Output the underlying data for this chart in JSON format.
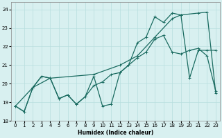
{
  "xlabel": "Humidex (Indice chaleur)",
  "background_color": "#d8f0f0",
  "grid_color": "#b8dede",
  "line_color": "#1a6b60",
  "xlim": [
    -0.5,
    23.5
  ],
  "ylim": [
    18,
    24.4
  ],
  "yticks": [
    18,
    19,
    20,
    21,
    22,
    23,
    24
  ],
  "xticks": [
    0,
    1,
    2,
    3,
    4,
    5,
    6,
    7,
    8,
    9,
    10,
    11,
    12,
    13,
    14,
    15,
    16,
    17,
    18,
    19,
    20,
    21,
    22,
    23
  ],
  "series1_x": [
    0,
    1,
    2,
    3,
    4,
    5,
    6,
    7,
    8,
    9,
    10,
    11,
    12,
    13,
    14,
    15,
    16,
    17,
    18,
    19,
    20,
    21,
    22,
    23
  ],
  "series1_y": [
    18.8,
    18.5,
    19.8,
    20.4,
    20.3,
    19.2,
    19.4,
    18.9,
    19.3,
    19.9,
    20.1,
    20.5,
    20.6,
    21.0,
    21.4,
    21.7,
    22.4,
    22.6,
    21.7,
    21.6,
    21.8,
    21.9,
    21.5,
    19.6
  ],
  "series2_x": [
    0,
    1,
    2,
    3,
    4,
    5,
    6,
    7,
    8,
    9,
    10,
    11,
    12,
    13,
    14,
    15,
    16,
    17,
    18,
    19,
    20,
    21,
    22,
    23
  ],
  "series2_y": [
    18.8,
    18.5,
    19.8,
    20.4,
    20.3,
    19.2,
    19.4,
    18.9,
    19.3,
    20.4,
    18.8,
    18.9,
    20.6,
    21.0,
    22.2,
    22.5,
    23.6,
    23.3,
    23.8,
    23.7,
    20.3,
    21.8,
    21.8,
    21.8
  ],
  "series3_x": [
    0,
    2,
    4,
    9,
    12,
    14,
    16,
    18,
    19,
    21,
    22,
    23
  ],
  "series3_y": [
    18.8,
    19.8,
    20.3,
    20.5,
    21.0,
    21.5,
    22.5,
    23.5,
    23.7,
    23.8,
    23.85,
    19.5
  ]
}
